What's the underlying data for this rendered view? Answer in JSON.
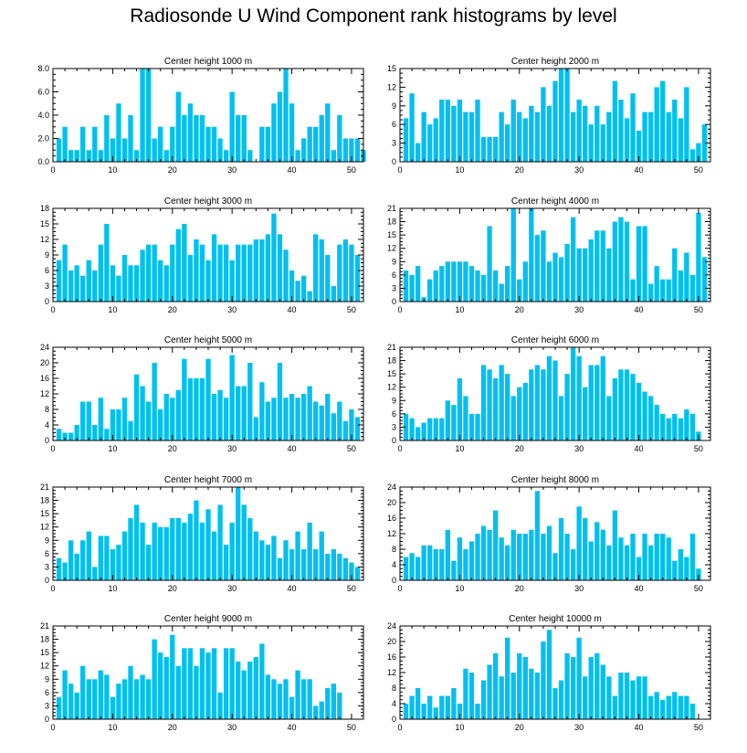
{
  "title": "Radiosonde U Wind Component rank histograms by level",
  "bar_color": "#00c0f0",
  "chart_data": [
    {
      "type": "bar",
      "title": "Center height 1000 m",
      "xlim": [
        0,
        52
      ],
      "xticks": [
        0,
        10,
        20,
        30,
        40,
        50
      ],
      "ylim": [
        0,
        8
      ],
      "yticks": [
        "0.0",
        "2.0",
        "4.0",
        "6.0",
        "8.0"
      ],
      "values": [
        2,
        3,
        1,
        1,
        3,
        1,
        3,
        1,
        4,
        2,
        5,
        2,
        4,
        1,
        8,
        8,
        2,
        3,
        1,
        3,
        6,
        4,
        5,
        4,
        4,
        3,
        3,
        2,
        1,
        6,
        4,
        4,
        1,
        0,
        3,
        3,
        5,
        6,
        8,
        5,
        1,
        2,
        3,
        3,
        4,
        5,
        1,
        4,
        2,
        2,
        2,
        1
      ]
    },
    {
      "type": "bar",
      "title": "Center height 2000 m",
      "xlim": [
        0,
        52
      ],
      "xticks": [
        0,
        10,
        20,
        30,
        40,
        50
      ],
      "ylim": [
        0,
        15
      ],
      "yticks": [
        "0",
        "3",
        "6",
        "9",
        "12",
        "15"
      ],
      "values": [
        7,
        11,
        3,
        8,
        6,
        7,
        10,
        10,
        9,
        10,
        8,
        8,
        10,
        4,
        4,
        4,
        8,
        6,
        10,
        8,
        7,
        9,
        8,
        12,
        9,
        13,
        15,
        15,
        8,
        10,
        9,
        6,
        9,
        6,
        8,
        13,
        10,
        7,
        11,
        5,
        8,
        8,
        12,
        13,
        8,
        10,
        7,
        12,
        2,
        3,
        6,
        0
      ]
    },
    {
      "type": "bar",
      "title": "Center height 3000 m",
      "xlim": [
        0,
        52
      ],
      "xticks": [
        0,
        10,
        20,
        30,
        40,
        50
      ],
      "ylim": [
        0,
        18
      ],
      "yticks": [
        "0",
        "3",
        "6",
        "9",
        "12",
        "15",
        "18"
      ],
      "values": [
        8,
        11,
        6,
        7,
        5,
        8,
        6,
        11,
        15,
        7,
        5,
        9,
        7,
        7,
        10,
        11,
        11,
        8,
        7,
        11,
        14,
        15,
        9,
        12,
        11,
        8,
        13,
        11,
        11,
        8,
        11,
        11,
        11,
        12,
        12,
        13,
        17,
        13,
        10,
        6,
        4,
        5,
        2,
        13,
        12,
        9,
        3,
        11,
        12,
        11,
        9,
        0
      ]
    },
    {
      "type": "bar",
      "title": "Center height 4000 m",
      "xlim": [
        0,
        52
      ],
      "xticks": [
        0,
        10,
        20,
        30,
        40,
        50
      ],
      "ylim": [
        0,
        21
      ],
      "yticks": [
        "0",
        "3",
        "6",
        "9",
        "12",
        "15",
        "18",
        "21"
      ],
      "values": [
        7,
        6,
        8,
        1,
        5,
        7,
        8,
        9,
        9,
        9,
        9,
        8,
        7,
        6,
        17,
        7,
        4,
        8,
        21,
        5,
        9,
        21,
        15,
        16,
        9,
        11,
        10,
        13,
        19,
        12,
        12,
        14,
        16,
        16,
        12,
        18,
        19,
        18,
        5,
        17,
        17,
        4,
        8,
        5,
        5,
        12,
        7,
        11,
        6,
        20,
        10,
        0
      ]
    },
    {
      "type": "bar",
      "title": "Center height 5000 m",
      "xlim": [
        0,
        52
      ],
      "xticks": [
        0,
        10,
        20,
        30,
        40,
        50
      ],
      "ylim": [
        0,
        24
      ],
      "yticks": [
        "0",
        "4",
        "8",
        "12",
        "16",
        "20",
        "24"
      ],
      "values": [
        3,
        2,
        2,
        4,
        10,
        10,
        4,
        11,
        3,
        8,
        8,
        11,
        5,
        17,
        14,
        10,
        20,
        8,
        12,
        11,
        13,
        21,
        16,
        16,
        16,
        21,
        12,
        13,
        11,
        22,
        14,
        14,
        20,
        6,
        15,
        10,
        11,
        20,
        11,
        12,
        11,
        12,
        14,
        10,
        9,
        12,
        7,
        10,
        5,
        8,
        6,
        0
      ]
    },
    {
      "type": "bar",
      "title": "Center height 6000 m",
      "xlim": [
        0,
        52
      ],
      "xticks": [
        0,
        10,
        20,
        30,
        40,
        50
      ],
      "ylim": [
        0,
        21
      ],
      "yticks": [
        "0",
        "3",
        "6",
        "9",
        "12",
        "15",
        "18",
        "21"
      ],
      "values": [
        6,
        5,
        3,
        4,
        5,
        5,
        5,
        9,
        8,
        14,
        10,
        6,
        6,
        17,
        16,
        14,
        17,
        15,
        10,
        12,
        13,
        16,
        17,
        16,
        19,
        18,
        10,
        15,
        21,
        19,
        12,
        17,
        17,
        19,
        10,
        14,
        16,
        16,
        15,
        13,
        11,
        10,
        8,
        6,
        5,
        6,
        5,
        7,
        6,
        2,
        0,
        0
      ]
    },
    {
      "type": "bar",
      "title": "Center height 7000 m",
      "xlim": [
        0,
        52
      ],
      "xticks": [
        0,
        10,
        20,
        30,
        40,
        50
      ],
      "ylim": [
        0,
        21
      ],
      "yticks": [
        "0",
        "3",
        "6",
        "9",
        "12",
        "15",
        "18",
        "21"
      ],
      "values": [
        5,
        4,
        9,
        6,
        9,
        11,
        3,
        10,
        10,
        7,
        8,
        11,
        14,
        17,
        13,
        8,
        13,
        12,
        12,
        14,
        14,
        13,
        15,
        18,
        13,
        16,
        11,
        17,
        8,
        13,
        21,
        17,
        14,
        11,
        9,
        8,
        10,
        5,
        9,
        7,
        11,
        7,
        13,
        7,
        11,
        6,
        7,
        6,
        5,
        4,
        3,
        0
      ]
    },
    {
      "type": "bar",
      "title": "Center height 8000 m",
      "xlim": [
        0,
        52
      ],
      "xticks": [
        0,
        10,
        20,
        30,
        40,
        50
      ],
      "ylim": [
        0,
        24
      ],
      "yticks": [
        "0",
        "4",
        "8",
        "12",
        "16",
        "20",
        "24"
      ],
      "values": [
        6,
        7,
        6,
        9,
        9,
        8,
        8,
        13,
        5,
        11,
        8,
        10,
        12,
        14,
        13,
        18,
        11,
        9,
        13,
        12,
        12,
        13,
        23,
        12,
        14,
        7,
        16,
        12,
        8,
        19,
        16,
        10,
        15,
        13,
        9,
        18,
        11,
        9,
        12,
        6,
        12,
        9,
        12,
        12,
        11,
        5,
        8,
        6,
        12,
        3,
        0,
        0
      ]
    },
    {
      "type": "bar",
      "title": "Center height 9000 m",
      "xlim": [
        0,
        52
      ],
      "xticks": [
        0,
        10,
        20,
        30,
        40,
        50
      ],
      "ylim": [
        0,
        21
      ],
      "yticks": [
        "0",
        "3",
        "6",
        "9",
        "12",
        "15",
        "18",
        "21"
      ],
      "values": [
        5,
        11,
        8,
        6,
        12,
        9,
        9,
        11,
        10,
        5,
        8,
        9,
        12,
        9,
        10,
        9,
        18,
        15,
        14,
        19,
        12,
        16,
        16,
        12,
        16,
        15,
        16,
        6,
        16,
        16,
        13,
        11,
        13,
        14,
        17,
        10,
        9,
        8,
        9,
        5,
        11,
        9,
        9,
        3,
        4,
        7,
        8,
        6,
        0,
        0,
        0,
        0
      ]
    },
    {
      "type": "bar",
      "title": "Center height 10000 m",
      "xlim": [
        0,
        52
      ],
      "xticks": [
        0,
        10,
        20,
        30,
        40,
        50
      ],
      "ylim": [
        0,
        24
      ],
      "yticks": [
        "0",
        "4",
        "8",
        "12",
        "16",
        "20",
        "24"
      ],
      "values": [
        4,
        6,
        8,
        4,
        6,
        3,
        6,
        6,
        8,
        4,
        13,
        12,
        4,
        10,
        14,
        17,
        11,
        21,
        12,
        17,
        16,
        13,
        12,
        20,
        23,
        8,
        10,
        17,
        16,
        21,
        11,
        16,
        17,
        14,
        11,
        6,
        12,
        12,
        10,
        11,
        11,
        6,
        7,
        5,
        6,
        7,
        6,
        6,
        4,
        0,
        0,
        0
      ]
    }
  ]
}
